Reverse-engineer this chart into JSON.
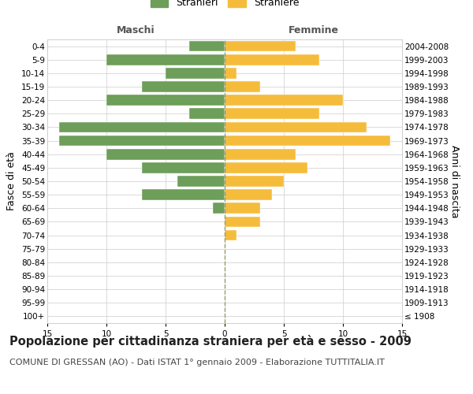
{
  "age_groups": [
    "100+",
    "95-99",
    "90-94",
    "85-89",
    "80-84",
    "75-79",
    "70-74",
    "65-69",
    "60-64",
    "55-59",
    "50-54",
    "45-49",
    "40-44",
    "35-39",
    "30-34",
    "25-29",
    "20-24",
    "15-19",
    "10-14",
    "5-9",
    "0-4"
  ],
  "birth_years": [
    "≤ 1908",
    "1909-1913",
    "1914-1918",
    "1919-1923",
    "1924-1928",
    "1929-1933",
    "1934-1938",
    "1939-1943",
    "1944-1948",
    "1949-1953",
    "1954-1958",
    "1959-1963",
    "1964-1968",
    "1969-1973",
    "1974-1978",
    "1979-1983",
    "1984-1988",
    "1989-1993",
    "1994-1998",
    "1999-2003",
    "2004-2008"
  ],
  "males": [
    0,
    0,
    0,
    0,
    0,
    0,
    0,
    0,
    1,
    7,
    4,
    7,
    10,
    14,
    14,
    3,
    10,
    7,
    5,
    10,
    3
  ],
  "females": [
    0,
    0,
    0,
    0,
    0,
    0,
    1,
    3,
    3,
    4,
    5,
    7,
    6,
    14,
    12,
    8,
    10,
    3,
    1,
    8,
    6
  ],
  "male_color": "#6d9e5a",
  "female_color": "#f5bc3c",
  "background_color": "#ffffff",
  "grid_color": "#cccccc",
  "center_line_color": "#999966",
  "title": "Popolazione per cittadinanza straniera per età e sesso - 2009",
  "subtitle": "COMUNE DI GRESSAN (AO) - Dati ISTAT 1° gennaio 2009 - Elaborazione TUTTITALIA.IT",
  "xlabel_left": "Maschi",
  "xlabel_right": "Femmine",
  "ylabel_left": "Fasce di età",
  "ylabel_right": "Anni di nascita",
  "legend_male": "Stranieri",
  "legend_female": "Straniere",
  "xlim": 15,
  "title_fontsize": 10.5,
  "subtitle_fontsize": 8,
  "label_fontsize": 9,
  "tick_fontsize": 7.5
}
